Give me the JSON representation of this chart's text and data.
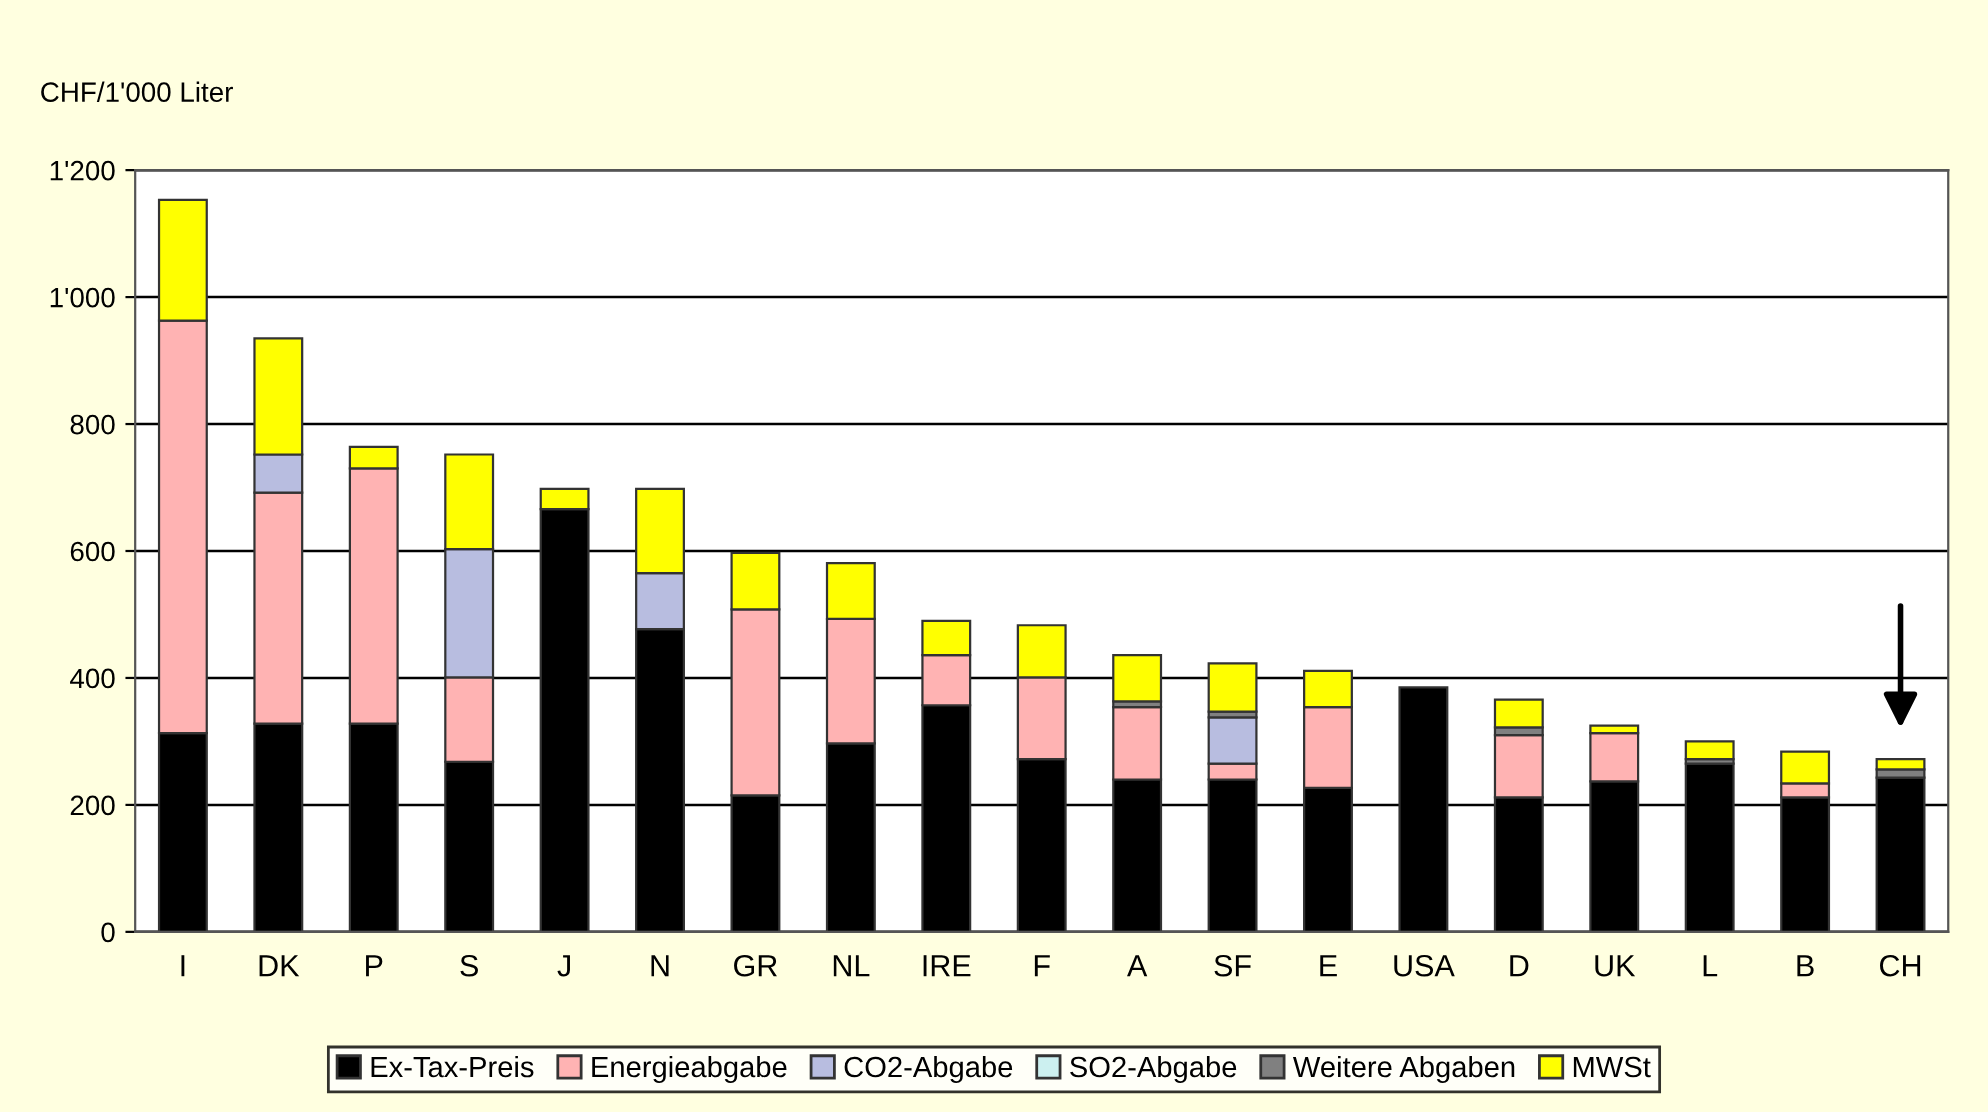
{
  "chart_data": {
    "type": "bar",
    "stacked": true,
    "ylabel": "CHF/1'000 Liter",
    "categories": [
      "I",
      "DK",
      "P",
      "S",
      "J",
      "N",
      "GR",
      "NL",
      "IRE",
      "F",
      "A",
      "SF",
      "E",
      "USA",
      "D",
      "UK",
      "L",
      "B",
      "CH"
    ],
    "series": [
      {
        "name": "Ex-Tax-Preis",
        "color": "#000000",
        "values": [
          313,
          328,
          328,
          268,
          666,
          477,
          215,
          297,
          357,
          272,
          240,
          240,
          227,
          385,
          212,
          237,
          265,
          212,
          243
        ]
      },
      {
        "name": "Energieabgabe",
        "color": "#ffb3b3",
        "values": [
          650,
          364,
          402,
          133,
          null,
          null,
          293,
          196,
          79,
          129,
          114,
          25,
          127,
          null,
          98,
          76,
          null,
          22,
          null
        ]
      },
      {
        "name": "CO2-Abgabe",
        "color": "#b8bde0",
        "values": [
          null,
          60,
          null,
          202,
          null,
          88,
          null,
          null,
          null,
          null,
          null,
          73,
          null,
          null,
          null,
          null,
          null,
          null,
          null
        ]
      },
      {
        "name": "SO2-Abgabe",
        "color": "#ccf0f0",
        "values": [
          null,
          null,
          null,
          null,
          null,
          null,
          null,
          null,
          null,
          null,
          null,
          null,
          null,
          null,
          null,
          null,
          null,
          null,
          null
        ]
      },
      {
        "name": "Weitere Abgaben",
        "color": "#808080",
        "values": [
          null,
          null,
          null,
          null,
          null,
          null,
          null,
          null,
          null,
          null,
          9,
          9,
          null,
          null,
          12,
          null,
          7,
          null,
          13
        ]
      },
      {
        "name": "MWSt",
        "color": "#ffff00",
        "values": [
          190,
          183,
          34,
          149,
          32,
          133,
          89,
          88,
          54,
          82,
          73,
          76,
          57,
          null,
          44,
          12,
          28,
          50,
          16
        ]
      }
    ],
    "ylim": [
      0,
      1200
    ],
    "yticks": [
      0,
      200,
      400,
      600,
      800,
      {
        "value": 1000,
        "label": "1'000"
      },
      {
        "value": 1200,
        "label": "1'200"
      }
    ],
    "grid": "y",
    "legend": "bottom"
  }
}
